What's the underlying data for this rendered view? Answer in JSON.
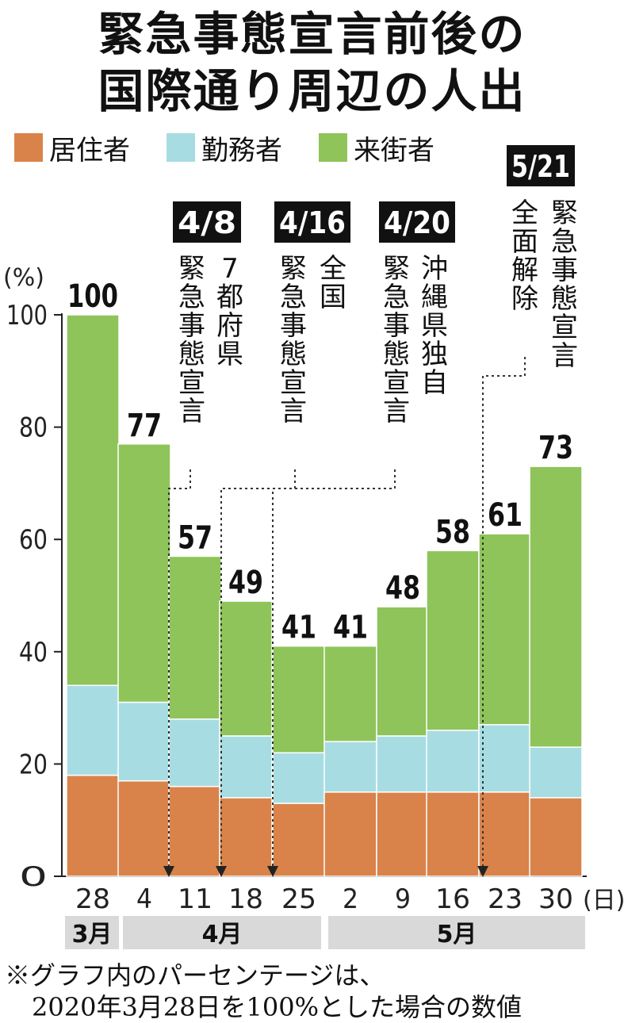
{
  "title_lines": [
    "緊急事態宣言前後の",
    "国際通り周辺の人出"
  ],
  "legend": [
    {
      "label": "居住者",
      "color": "#d9834a"
    },
    {
      "label": "勤務者",
      "color": "#a7dde2"
    },
    {
      "label": "来街者",
      "color": "#8fc45a"
    }
  ],
  "chart_data": {
    "type": "bar",
    "stacked": true,
    "categories": [
      "28",
      "4",
      "11",
      "18",
      "25",
      "2",
      "9",
      "16",
      "23",
      "30"
    ],
    "month_groups": [
      {
        "label": "3月",
        "categories": [
          "28"
        ]
      },
      {
        "label": "4月",
        "categories": [
          "4",
          "11",
          "18",
          "25"
        ]
      },
      {
        "label": "5月",
        "categories": [
          "2",
          "9",
          "16",
          "23",
          "30"
        ]
      }
    ],
    "series": [
      {
        "name": "居住者",
        "values": [
          18,
          17,
          16,
          14,
          13,
          15,
          15,
          15,
          15,
          14
        ]
      },
      {
        "name": "勤務者",
        "values": [
          16,
          14,
          12,
          11,
          9,
          9,
          10,
          11,
          12,
          9
        ]
      },
      {
        "name": "来街者",
        "values": [
          66,
          46,
          29,
          24,
          19,
          17,
          23,
          32,
          34,
          50
        ]
      }
    ],
    "totals": [
      100,
      77,
      57,
      49,
      41,
      41,
      48,
      58,
      61,
      73
    ],
    "total_labels": [
      "100",
      "77",
      "57",
      "49",
      "41",
      "41",
      "48",
      "58",
      "61",
      "73"
    ],
    "ylim": [
      0,
      100
    ],
    "yticks": [
      "0",
      "20",
      "40",
      "60",
      "80",
      "100"
    ],
    "y_unit_label": "(%)",
    "x_unit_label": "(日)",
    "events": [
      {
        "date_label": "4/8",
        "lines": [
          "7都府県",
          "緊急事態宣言"
        ]
      },
      {
        "date_label": "4/16",
        "lines": [
          "全国",
          "緊急事態宣言"
        ]
      },
      {
        "date_label": "4/20",
        "lines": [
          "沖縄県独自",
          "緊急事態宣言"
        ]
      },
      {
        "date_label": "5/21",
        "lines": [
          "緊急事態宣言",
          "全面解除"
        ]
      }
    ]
  },
  "footnote_lines": [
    "※グラフ内のパーセンテージは、",
    "2020年3月28日を100%とした場合の数値"
  ]
}
